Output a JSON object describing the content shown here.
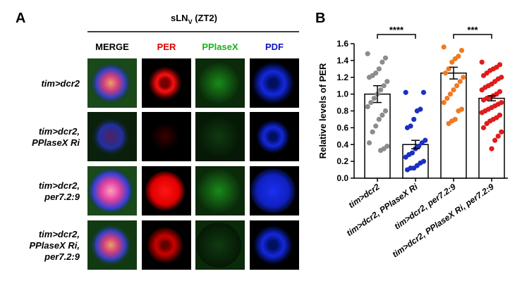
{
  "panel_a": {
    "label": "A",
    "header": {
      "main": "sLN",
      "sub": "V",
      "rest": " (ZT2)"
    },
    "columns": [
      "MERGE",
      "PER",
      "PPlaseX",
      "PDF"
    ],
    "column_colors": [
      "#000000",
      "#e00000",
      "#18b418",
      "#1010c8"
    ],
    "rows": [
      [
        "tim>dcr2"
      ],
      [
        "tim>dcr2,",
        "PPlaseX Ri"
      ],
      [
        "tim>dcr2,",
        "per7.2:9"
      ],
      [
        "tim>dcr2,",
        "PPlaseX Ri,",
        "per7.2:9"
      ]
    ]
  },
  "chart_data": {
    "type": "bar",
    "label": "B",
    "ylabel": "Relative levels of PER",
    "categories": [
      "tim>dcr2",
      "tim>dcr2, PPlaseX Ri",
      "tim>dcr2, per7.2:9",
      "tim>dcr2, PPlaseX Ri, per7.2:9"
    ],
    "values": [
      1.0,
      0.4,
      1.25,
      0.95
    ],
    "errors": [
      0.1,
      0.05,
      0.07,
      0.03
    ],
    "colors": [
      "#8c8c8c",
      "#1c2fc4",
      "#ef7a22",
      "#e01b1b"
    ],
    "points": [
      [
        1.48,
        1.43,
        1.38,
        1.3,
        1.25,
        1.22,
        1.2,
        1.15,
        1.1,
        1.05,
        1.0,
        0.95,
        0.9,
        0.85,
        0.8,
        0.75,
        0.7,
        0.62,
        0.55,
        0.42,
        0.38,
        0.35,
        0.33
      ],
      [
        1.02,
        1.02,
        0.82,
        0.8,
        0.7,
        0.62,
        0.6,
        0.45,
        0.42,
        0.38,
        0.35,
        0.3,
        0.28,
        0.25,
        0.2,
        0.18,
        0.15,
        0.12,
        0.12,
        0.1
      ],
      [
        1.56,
        1.52,
        1.45,
        1.42,
        1.38,
        1.3,
        1.25,
        1.2,
        1.15,
        1.1,
        1.05,
        1.0,
        0.95,
        0.9,
        0.82,
        0.8,
        0.7,
        0.68,
        0.65
      ],
      [
        1.38,
        1.35,
        1.32,
        1.3,
        1.28,
        1.25,
        1.22,
        1.2,
        1.18,
        1.15,
        1.12,
        1.1,
        1.08,
        1.05,
        1.03,
        1.0,
        0.98,
        0.96,
        0.95,
        0.93,
        0.9,
        0.88,
        0.86,
        0.84,
        0.82,
        0.8,
        0.78,
        0.75,
        0.72,
        0.7,
        0.68,
        0.65,
        0.6,
        0.55,
        0.5,
        0.45,
        0.35
      ]
    ],
    "significance": [
      "****",
      "***"
    ],
    "ylim": [
      0,
      1.6
    ],
    "yticks": [
      {
        "value": 0,
        "label": "0.0"
      },
      {
        "value": 0.2,
        "label": "0.2"
      },
      {
        "value": 0.4,
        "label": "0.4"
      },
      {
        "value": 0.6,
        "label": "0.6"
      },
      {
        "value": 0.8,
        "label": "0.8"
      },
      {
        "value": 1.0,
        "label": "1.0"
      },
      {
        "value": 1.2,
        "label": "1.2"
      },
      {
        "value": 1.4,
        "label": "1.4"
      },
      {
        "value": 1.6,
        "label": "1.6"
      }
    ]
  }
}
